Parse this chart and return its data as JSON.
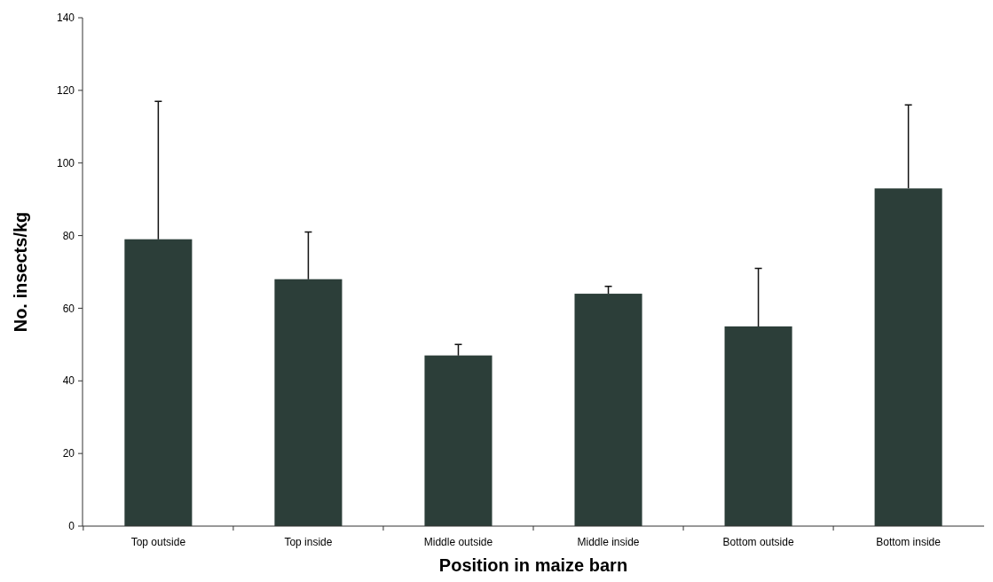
{
  "chart_data": {
    "type": "bar",
    "xlabel": "Position in maize barn",
    "ylabel": "No. insects/kg",
    "categories": [
      "Top outside",
      "Top inside",
      "Middle outside",
      "Middle inside",
      "Bottom outside",
      "Bottom inside"
    ],
    "values": [
      79,
      68,
      47,
      64,
      55,
      93
    ],
    "errors": [
      [
        79,
        117
      ],
      [
        68,
        81
      ],
      [
        47,
        50
      ],
      [
        64,
        66
      ],
      [
        55,
        71
      ],
      [
        93,
        116
      ]
    ],
    "color": "#2c3e39",
    "ylim": [
      0,
      140
    ],
    "yticks": [
      0,
      20,
      40,
      60,
      80,
      100,
      120,
      140
    ],
    "grid": false
  }
}
